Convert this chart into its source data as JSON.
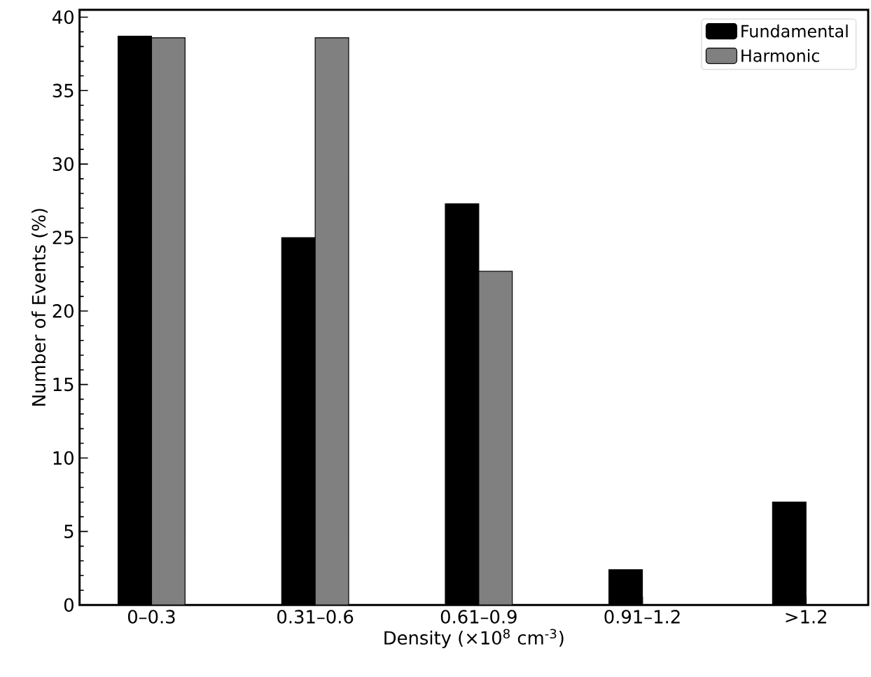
{
  "chart_data": {
    "type": "bar",
    "xlabel": "Density (×10$^{8}$ cm$^{-3}$)",
    "ylabel": "Number of Events (%)",
    "categories": [
      "0–0.3",
      "0.31–0.6",
      "0.61–0.9",
      "0.91–1.2",
      ">1.2"
    ],
    "series": [
      {
        "name": "Fundamental",
        "color": "#000000",
        "values": [
          38.7,
          25.0,
          27.3,
          2.4,
          7.0
        ]
      },
      {
        "name": "Harmonic",
        "color": "#808080",
        "values": [
          38.6,
          38.6,
          22.7,
          null,
          null
        ]
      }
    ],
    "ylim": [
      0,
      40.5
    ],
    "yticks": [
      0,
      5,
      10,
      15,
      20,
      25,
      30,
      35,
      40
    ],
    "legend": "top right",
    "grid": false
  }
}
